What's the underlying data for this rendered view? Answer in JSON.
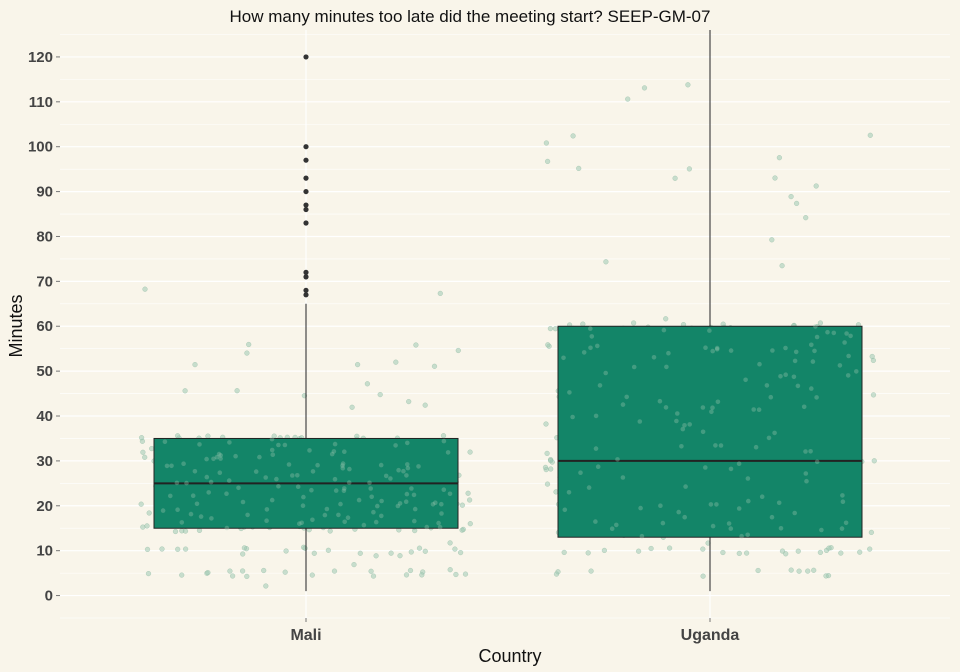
{
  "chart_data": {
    "type": "boxplot",
    "title": "How many minutes too late did the meeting start? SEEP-GM-07",
    "xlabel": "Country",
    "ylabel": "Minutes",
    "ylim": [
      -5,
      126
    ],
    "y_ticks": [
      0,
      10,
      20,
      30,
      40,
      50,
      60,
      70,
      80,
      90,
      100,
      110,
      120
    ],
    "y_tick_labels": [
      "0",
      "10",
      "20",
      "30",
      "40",
      "50",
      "60",
      "70",
      "80",
      "90",
      "100",
      "110",
      "120"
    ],
    "categories": [
      "Mali",
      "Uganda"
    ],
    "legend": "none",
    "grid": true,
    "colors": {
      "box_fill": "#138568",
      "box_stroke": "#222222",
      "jitter": "#9fc8b2",
      "outlier": "#333333",
      "background": "#f9f5ea"
    },
    "boxes": [
      {
        "category": "Mali",
        "q1": 15,
        "median": 25,
        "q3": 35,
        "whisker_low": 1,
        "whisker_high": 65,
        "outliers": [
          67,
          68,
          71,
          72,
          83,
          86,
          87,
          90,
          93,
          97,
          100,
          120
        ]
      },
      {
        "category": "Uganda",
        "q1": 13,
        "median": 30,
        "q3": 60,
        "whisker_low": 1,
        "whisker_high": 126,
        "outliers": []
      }
    ]
  }
}
